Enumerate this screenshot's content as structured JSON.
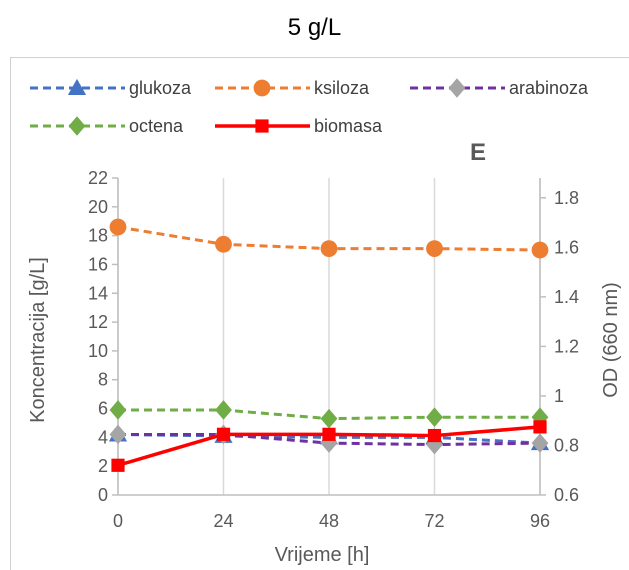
{
  "chart_data": {
    "type": "line",
    "title": "5 g/L",
    "panel_label": "E",
    "xlabel": "Vrijeme [h]",
    "ylabel": "Koncentracija [g/L]",
    "y2label": "OD (660 nm)",
    "x": [
      0,
      24,
      48,
      72,
      96
    ],
    "xticks": [
      "0",
      "24",
      "48",
      "72",
      "96"
    ],
    "ylim": [
      0,
      22
    ],
    "yticks": [
      0,
      2,
      4,
      6,
      8,
      10,
      12,
      14,
      16,
      18,
      20,
      22
    ],
    "y2lim": [
      0.6,
      1.88
    ],
    "y2ticks": [
      "0.6",
      "0.8",
      "1",
      "1.2",
      "1.4",
      "1.6",
      "1.8"
    ],
    "grid": "vertical",
    "legend_position": "top",
    "series": [
      {
        "name": "glukoza",
        "axis": "left",
        "values": [
          4.2,
          4.1,
          4.0,
          4.0,
          3.6
        ],
        "color": "#4472C4",
        "marker": "triangle",
        "dash": true
      },
      {
        "name": "ksiloza",
        "axis": "left",
        "values": [
          18.6,
          17.4,
          17.1,
          17.1,
          17.0
        ],
        "color": "#ED7D31",
        "marker": "circle",
        "dash": true
      },
      {
        "name": "arabinoza",
        "axis": "left",
        "values": [
          4.2,
          4.2,
          3.6,
          3.5,
          3.6
        ],
        "color": "#7030A0",
        "marker": "diamond",
        "markerColor": "#A5A5A5",
        "dash": true
      },
      {
        "name": "octena",
        "axis": "left",
        "values": [
          5.9,
          5.9,
          5.3,
          5.4,
          5.4
        ],
        "color": "#70AD47",
        "marker": "diamond",
        "dash": true
      },
      {
        "name": "biomasa",
        "axis": "right",
        "values": [
          0.72,
          0.845,
          0.845,
          0.84,
          0.875
        ],
        "color": "#FF0000",
        "marker": "square",
        "dash": false
      }
    ]
  }
}
